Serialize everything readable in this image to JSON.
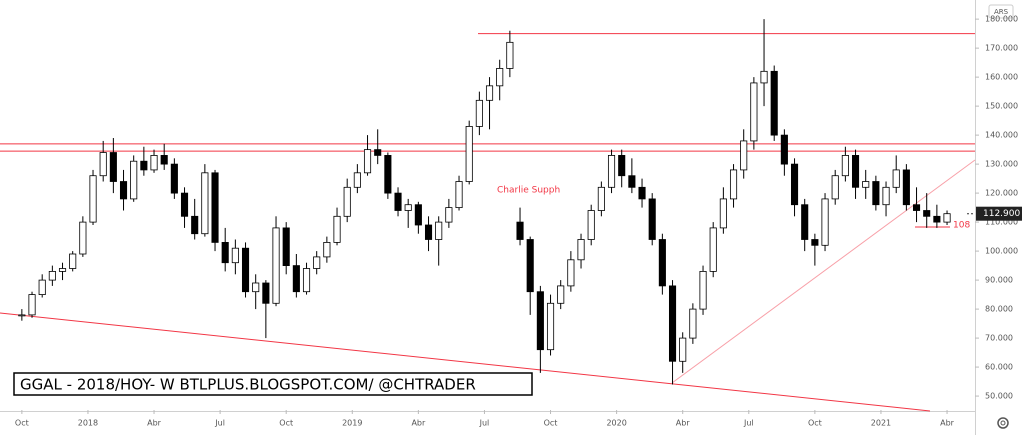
{
  "chart_data": {
    "type": "candlestick",
    "currency": "ARS",
    "annotation": "Charlie Supph",
    "watermark": "GGAL - 2018/HOY- W  BTLPLUS.BLOGSPOT.COM/ @CHTRADER",
    "support_label": "108",
    "last_price": {
      "value": 112.9,
      "label": "112.900"
    },
    "levels": [
      175,
      137,
      134.5
    ],
    "up_color": "#ffffff",
    "down_color": "#000000",
    "level_color": "#f23645",
    "x": [
      0,
      2,
      4,
      6,
      8,
      10,
      12,
      14,
      16,
      18,
      20,
      22,
      24,
      26,
      28,
      30,
      32,
      34,
      36,
      38,
      40,
      42,
      44,
      46,
      48,
      50,
      52,
      54,
      56,
      58,
      60,
      62,
      64,
      66,
      68,
      70,
      72,
      74,
      76,
      78,
      80,
      82,
      84,
      86,
      88,
      90,
      92,
      94,
      96,
      98,
      100,
      102,
      104,
      106,
      108,
      110,
      112,
      114,
      116,
      118,
      120,
      122,
      124,
      126,
      128,
      130,
      132,
      134,
      136,
      138,
      140,
      142,
      144,
      146,
      148,
      150,
      152,
      154,
      156,
      158,
      160,
      162,
      164,
      166,
      168,
      170,
      172,
      174,
      176,
      178,
      180,
      182
    ],
    "open": [
      78,
      78,
      85,
      90,
      93,
      94,
      99,
      110,
      126,
      134,
      124,
      118,
      131,
      128,
      133,
      130,
      120,
      112,
      106,
      127,
      103,
      96,
      101,
      86,
      89,
      82,
      108,
      95,
      86,
      94,
      98,
      103,
      112,
      122,
      127,
      135,
      133,
      120,
      114,
      116,
      109,
      104,
      110,
      115,
      124,
      143,
      152,
      157,
      163,
      110,
      104,
      86,
      66,
      82,
      88,
      97,
      104,
      114,
      122,
      133,
      126,
      122,
      118,
      104,
      88,
      62,
      70,
      80,
      93,
      108,
      118,
      128,
      138,
      158,
      162,
      140,
      130,
      116,
      104,
      102,
      118,
      126,
      133,
      122,
      124,
      116,
      122,
      128,
      116,
      114,
      112,
      110
    ],
    "high": [
      80,
      86,
      92,
      95,
      96,
      100,
      112,
      128,
      138,
      139,
      128,
      133,
      136,
      135,
      137,
      132,
      122,
      118,
      130,
      128,
      108,
      104,
      103,
      92,
      90,
      112,
      110,
      99,
      96,
      100,
      105,
      115,
      125,
      130,
      140,
      142,
      134,
      122,
      118,
      117,
      112,
      112,
      118,
      126,
      145,
      155,
      160,
      166,
      176,
      115,
      105,
      88,
      85,
      90,
      100,
      106,
      116,
      124,
      135,
      135,
      132,
      125,
      120,
      106,
      90,
      72,
      82,
      95,
      110,
      122,
      130,
      142,
      160,
      180,
      164,
      142,
      132,
      118,
      106,
      120,
      128,
      136,
      135,
      128,
      126,
      124,
      133,
      130,
      122,
      120,
      116,
      114
    ],
    "low": [
      76,
      77,
      84,
      88,
      90,
      93,
      98,
      109,
      124,
      120,
      114,
      117,
      126,
      127,
      128,
      118,
      108,
      104,
      105,
      100,
      93,
      92,
      84,
      80,
      70,
      81,
      92,
      84,
      85,
      92,
      96,
      102,
      110,
      120,
      126,
      130,
      118,
      112,
      108,
      106,
      100,
      95,
      108,
      114,
      123,
      140,
      142,
      152,
      160,
      102,
      78,
      58,
      64,
      80,
      86,
      94,
      102,
      112,
      120,
      122,
      120,
      115,
      102,
      85,
      54,
      58,
      68,
      78,
      91,
      106,
      115,
      125,
      135,
      150,
      138,
      126,
      112,
      100,
      95,
      100,
      116,
      124,
      118,
      118,
      114,
      112,
      120,
      114,
      110,
      108,
      108,
      109
    ],
    "close": [
      78,
      85,
      90,
      93,
      94,
      99,
      110,
      126,
      134,
      124,
      118,
      131,
      128,
      133,
      130,
      120,
      112,
      106,
      127,
      103,
      96,
      101,
      86,
      89,
      82,
      108,
      95,
      86,
      94,
      98,
      103,
      112,
      122,
      127,
      135,
      133,
      120,
      114,
      116,
      109,
      104,
      110,
      115,
      124,
      143,
      152,
      157,
      163,
      172,
      104,
      86,
      66,
      82,
      88,
      97,
      104,
      114,
      122,
      133,
      126,
      122,
      118,
      104,
      88,
      62,
      70,
      80,
      93,
      108,
      118,
      128,
      138,
      158,
      162,
      140,
      130,
      116,
      104,
      102,
      118,
      126,
      133,
      122,
      124,
      116,
      122,
      128,
      116,
      114,
      112,
      110,
      112.9
    ],
    "xlim": [
      -4.3,
      187.5
    ],
    "xticks": [
      {
        "value": 0,
        "label": "Oct"
      },
      {
        "value": 13,
        "label": "2018"
      },
      {
        "value": 26,
        "label": "Abr"
      },
      {
        "value": 39,
        "label": "Jul"
      },
      {
        "value": 52,
        "label": "Oct"
      },
      {
        "value": 65,
        "label": "2019"
      },
      {
        "value": 78,
        "label": "Abr"
      },
      {
        "value": 91,
        "label": "Jul"
      },
      {
        "value": 104,
        "label": "Oct"
      },
      {
        "value": 117,
        "label": "2020"
      },
      {
        "value": 130,
        "label": "Abr"
      },
      {
        "value": 143,
        "label": "Jul"
      },
      {
        "value": 156,
        "label": "Oct"
      },
      {
        "value": 169,
        "label": "2021"
      },
      {
        "value": 182,
        "label": "Abr"
      }
    ],
    "ylim": [
      45.2,
      186.6
    ],
    "yticks": [
      {
        "value": 50,
        "label": "50.000"
      },
      {
        "value": 60,
        "label": "60.000"
      },
      {
        "value": 70,
        "label": "70.000"
      },
      {
        "value": 80,
        "label": "80.000"
      },
      {
        "value": 90,
        "label": "90.000"
      },
      {
        "value": 100,
        "label": "100.000"
      },
      {
        "value": 110,
        "label": "110.000"
      },
      {
        "value": 120,
        "label": "120.000"
      },
      {
        "value": 130,
        "label": "130.000"
      },
      {
        "value": 140,
        "label": "140.000"
      },
      {
        "value": 150,
        "label": "150.000"
      },
      {
        "value": 160,
        "label": "160.000"
      },
      {
        "value": 170,
        "label": "170.000"
      },
      {
        "value": 180,
        "label": "180.000"
      }
    ]
  }
}
